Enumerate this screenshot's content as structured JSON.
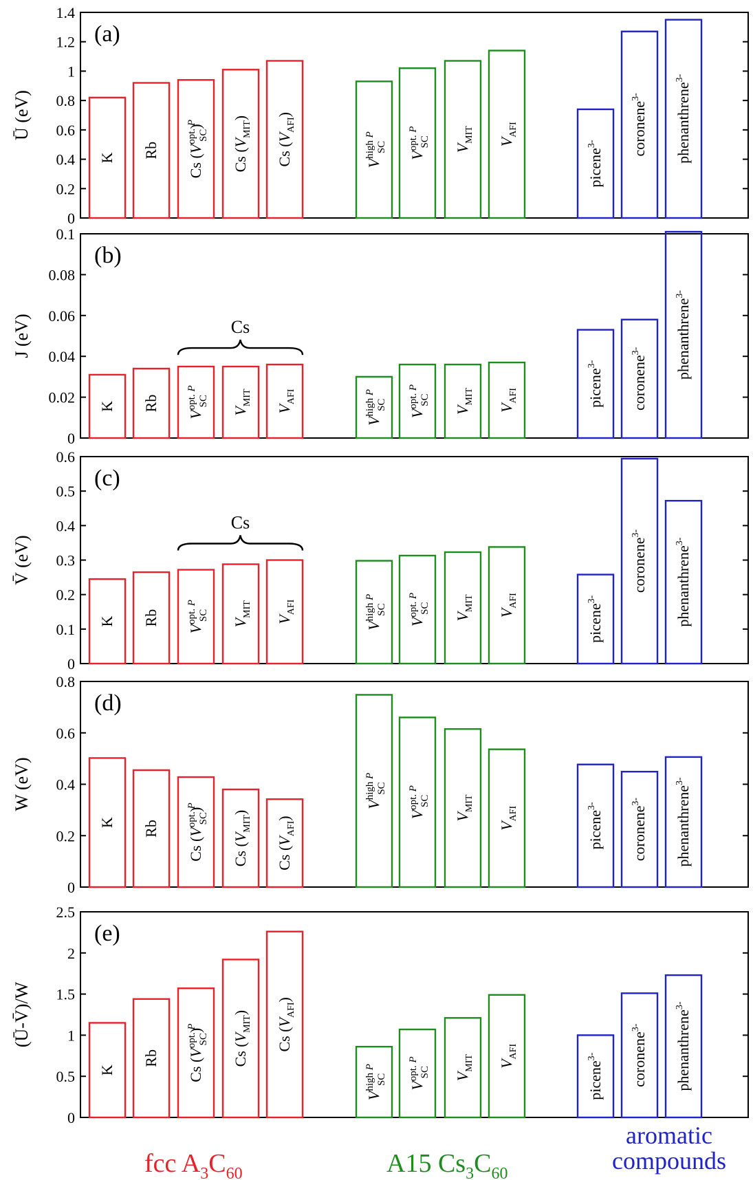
{
  "colors": {
    "fcc": "#e8212a",
    "a15": "#1e8c1e",
    "aromatic": "#1f23c8",
    "axis": "#000000"
  },
  "group_labels": {
    "fcc": {
      "main": "fcc A",
      "sub1": "3",
      "mid": "C",
      "sub2": "60"
    },
    "a15": {
      "main": "A15 Cs",
      "sub1": "3",
      "mid": "C",
      "sub2": "60"
    },
    "aromatic": {
      "line1": "aromatic",
      "line2": "compounds"
    }
  },
  "chart_data": [
    {
      "type": "bar",
      "panel": "(a)",
      "ylabel": "Ū (eV)",
      "ylim": [
        0,
        1.4
      ],
      "yticks": [
        "0",
        "0.2",
        "0.4",
        "0.6",
        "0.8",
        "1",
        "1.2",
        "1.4"
      ],
      "bars": [
        {
          "group": "fcc",
          "label": "K",
          "value": 0.82
        },
        {
          "group": "fcc",
          "label": "Rb",
          "value": 0.92
        },
        {
          "group": "fcc",
          "label": "Cs (V_SC^opt. P)",
          "value": 0.94
        },
        {
          "group": "fcc",
          "label": "Cs (V_MIT)",
          "value": 1.01
        },
        {
          "group": "fcc",
          "label": "Cs (V_AFI)",
          "value": 1.07
        },
        {
          "group": "a15",
          "label": "V_SC^high P",
          "value": 0.93
        },
        {
          "group": "a15",
          "label": "V_SC^opt. P",
          "value": 1.02
        },
        {
          "group": "a15",
          "label": "V_MIT",
          "value": 1.07
        },
        {
          "group": "a15",
          "label": "V_AFI",
          "value": 1.14
        },
        {
          "group": "aromatic",
          "label": "picene3-",
          "value": 0.74
        },
        {
          "group": "aromatic",
          "label": "coronene3-",
          "value": 1.27
        },
        {
          "group": "aromatic",
          "label": "phenanthrene3-",
          "value": 1.35
        }
      ]
    },
    {
      "type": "bar",
      "panel": "(b)",
      "ylabel": "J (eV)",
      "ylim": [
        0,
        0.1
      ],
      "yticks": [
        "0",
        "0.02",
        "0.04",
        "0.06",
        "0.08",
        "0.1"
      ],
      "brace": "Cs",
      "bars": [
        {
          "group": "fcc",
          "label": "K",
          "value": 0.031
        },
        {
          "group": "fcc",
          "label": "Rb",
          "value": 0.034
        },
        {
          "group": "fcc",
          "label": "V_SC^opt. P",
          "value": 0.035
        },
        {
          "group": "fcc",
          "label": "V_MIT",
          "value": 0.035
        },
        {
          "group": "fcc",
          "label": "V_AFI",
          "value": 0.036
        },
        {
          "group": "a15",
          "label": "V_SC^high P",
          "value": 0.03
        },
        {
          "group": "a15",
          "label": "V_SC^opt. P",
          "value": 0.036
        },
        {
          "group": "a15",
          "label": "V_MIT",
          "value": 0.036
        },
        {
          "group": "a15",
          "label": "V_AFI",
          "value": 0.037
        },
        {
          "group": "aromatic",
          "label": "picene3-",
          "value": 0.053
        },
        {
          "group": "aromatic",
          "label": "coronene3-",
          "value": 0.058
        },
        {
          "group": "aromatic",
          "label": "phenanthrene3-",
          "value": 0.101
        }
      ]
    },
    {
      "type": "bar",
      "panel": "(c)",
      "ylabel": "V̄ (eV)",
      "ylim": [
        0,
        0.6
      ],
      "yticks": [
        "0",
        "0.1",
        "0.2",
        "0.3",
        "0.4",
        "0.5",
        "0.6"
      ],
      "brace": "Cs",
      "bars": [
        {
          "group": "fcc",
          "label": "K",
          "value": 0.245
        },
        {
          "group": "fcc",
          "label": "Rb",
          "value": 0.265
        },
        {
          "group": "fcc",
          "label": "V_SC^opt. P",
          "value": 0.272
        },
        {
          "group": "fcc",
          "label": "V_MIT",
          "value": 0.288
        },
        {
          "group": "fcc",
          "label": "V_AFI",
          "value": 0.3
        },
        {
          "group": "a15",
          "label": "V_SC^high P",
          "value": 0.298
        },
        {
          "group": "a15",
          "label": "V_SC^opt. P",
          "value": 0.313
        },
        {
          "group": "a15",
          "label": "V_MIT",
          "value": 0.323
        },
        {
          "group": "a15",
          "label": "V_AFI",
          "value": 0.338
        },
        {
          "group": "aromatic",
          "label": "picene3-",
          "value": 0.258
        },
        {
          "group": "aromatic",
          "label": "coronene3-",
          "value": 0.594
        },
        {
          "group": "aromatic",
          "label": "phenanthrene3-",
          "value": 0.472
        }
      ]
    },
    {
      "type": "bar",
      "panel": "(d)",
      "ylabel": "W (eV)",
      "ylim": [
        0,
        0.8
      ],
      "yticks": [
        "0",
        "0.2",
        "0.4",
        "0.6",
        "0.8"
      ],
      "bars": [
        {
          "group": "fcc",
          "label": "K",
          "value": 0.502
        },
        {
          "group": "fcc",
          "label": "Rb",
          "value": 0.455
        },
        {
          "group": "fcc",
          "label": "Cs (V_SC^opt. P)",
          "value": 0.428
        },
        {
          "group": "fcc",
          "label": "Cs (V_MIT)",
          "value": 0.38
        },
        {
          "group": "fcc",
          "label": "Cs (V_AFI)",
          "value": 0.342
        },
        {
          "group": "a15",
          "label": "V_SC^high P",
          "value": 0.748
        },
        {
          "group": "a15",
          "label": "V_SC^opt. P",
          "value": 0.66
        },
        {
          "group": "a15",
          "label": "V_MIT",
          "value": 0.615
        },
        {
          "group": "a15",
          "label": "V_AFI",
          "value": 0.536
        },
        {
          "group": "aromatic",
          "label": "picene3-",
          "value": 0.477
        },
        {
          "group": "aromatic",
          "label": "coronene3-",
          "value": 0.449
        },
        {
          "group": "aromatic",
          "label": "phenanthrene3-",
          "value": 0.506
        }
      ]
    },
    {
      "type": "bar",
      "panel": "(e)",
      "ylabel": "(Ū-V̄)/W",
      "ylim": [
        0,
        2.5
      ],
      "yticks": [
        "0",
        "0.5",
        "1",
        "1.5",
        "2",
        "2.5"
      ],
      "bars": [
        {
          "group": "fcc",
          "label": "K",
          "value": 1.15
        },
        {
          "group": "fcc",
          "label": "Rb",
          "value": 1.44
        },
        {
          "group": "fcc",
          "label": "Cs (V_SC^opt. P)",
          "value": 1.57
        },
        {
          "group": "fcc",
          "label": "Cs (V_MIT)",
          "value": 1.92
        },
        {
          "group": "fcc",
          "label": "Cs (V_AFI)",
          "value": 2.26
        },
        {
          "group": "a15",
          "label": "V_SC^high P",
          "value": 0.86
        },
        {
          "group": "a15",
          "label": "V_SC^opt. P",
          "value": 1.07
        },
        {
          "group": "a15",
          "label": "V_MIT",
          "value": 1.21
        },
        {
          "group": "a15",
          "label": "V_AFI",
          "value": 1.49
        },
        {
          "group": "aromatic",
          "label": "picene3-",
          "value": 1.0
        },
        {
          "group": "aromatic",
          "label": "coronene3-",
          "value": 1.51
        },
        {
          "group": "aromatic",
          "label": "phenanthrene3-",
          "value": 1.73
        }
      ]
    }
  ]
}
